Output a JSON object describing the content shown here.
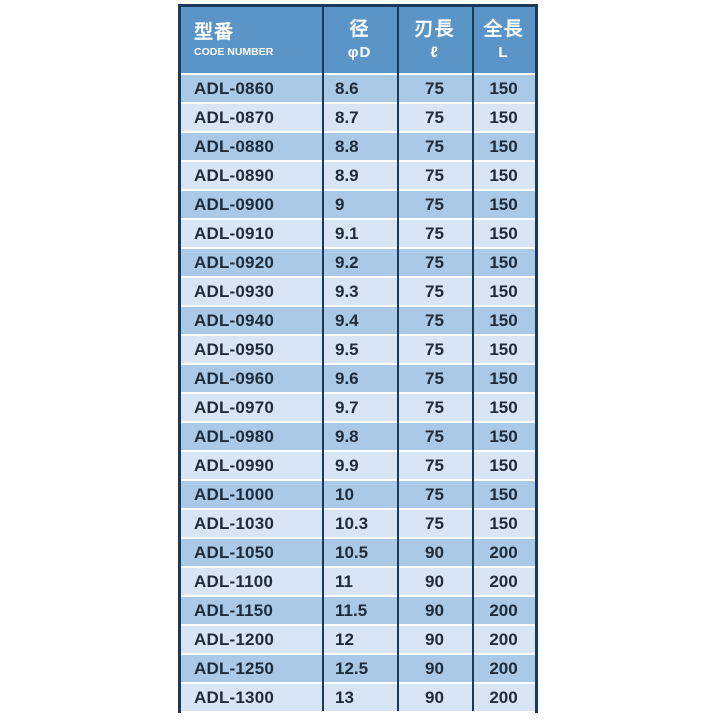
{
  "colors": {
    "header_bg": "#5b95c8",
    "border": "#1b3a5a",
    "row_dark": "#a9c9e6",
    "row_light": "#d7e5f4",
    "body_text": "#1d2b3a",
    "header_text": "#ffffff"
  },
  "table": {
    "columns": [
      {
        "title_jp": "型番",
        "subtitle": "CODE NUMBER"
      },
      {
        "title_jp": "径",
        "subtitle": "φD"
      },
      {
        "title_jp": "刃長",
        "subtitle": "ℓ"
      },
      {
        "title_jp": "全長",
        "subtitle": "L"
      }
    ],
    "rows": [
      {
        "code": "ADL-0860",
        "d": "8.6",
        "l": "75",
        "L": "150"
      },
      {
        "code": "ADL-0870",
        "d": "8.7",
        "l": "75",
        "L": "150"
      },
      {
        "code": "ADL-0880",
        "d": "8.8",
        "l": "75",
        "L": "150"
      },
      {
        "code": "ADL-0890",
        "d": "8.9",
        "l": "75",
        "L": "150"
      },
      {
        "code": "ADL-0900",
        "d": "9",
        "l": "75",
        "L": "150"
      },
      {
        "code": "ADL-0910",
        "d": "9.1",
        "l": "75",
        "L": "150"
      },
      {
        "code": "ADL-0920",
        "d": "9.2",
        "l": "75",
        "L": "150"
      },
      {
        "code": "ADL-0930",
        "d": "9.3",
        "l": "75",
        "L": "150"
      },
      {
        "code": "ADL-0940",
        "d": "9.4",
        "l": "75",
        "L": "150"
      },
      {
        "code": "ADL-0950",
        "d": "9.5",
        "l": "75",
        "L": "150"
      },
      {
        "code": "ADL-0960",
        "d": "9.6",
        "l": "75",
        "L": "150"
      },
      {
        "code": "ADL-0970",
        "d": "9.7",
        "l": "75",
        "L": "150"
      },
      {
        "code": "ADL-0980",
        "d": "9.8",
        "l": "75",
        "L": "150"
      },
      {
        "code": "ADL-0990",
        "d": "9.9",
        "l": "75",
        "L": "150"
      },
      {
        "code": "ADL-1000",
        "d": "10",
        "l": "75",
        "L": "150"
      },
      {
        "code": "ADL-1030",
        "d": "10.3",
        "l": "75",
        "L": "150"
      },
      {
        "code": "ADL-1050",
        "d": "10.5",
        "l": "90",
        "L": "200"
      },
      {
        "code": "ADL-1100",
        "d": "11",
        "l": "90",
        "L": "200"
      },
      {
        "code": "ADL-1150",
        "d": "11.5",
        "l": "90",
        "L": "200"
      },
      {
        "code": "ADL-1200",
        "d": "12",
        "l": "90",
        "L": "200"
      },
      {
        "code": "ADL-1250",
        "d": "12.5",
        "l": "90",
        "L": "200"
      },
      {
        "code": "ADL-1300",
        "d": "13",
        "l": "90",
        "L": "200"
      }
    ]
  }
}
